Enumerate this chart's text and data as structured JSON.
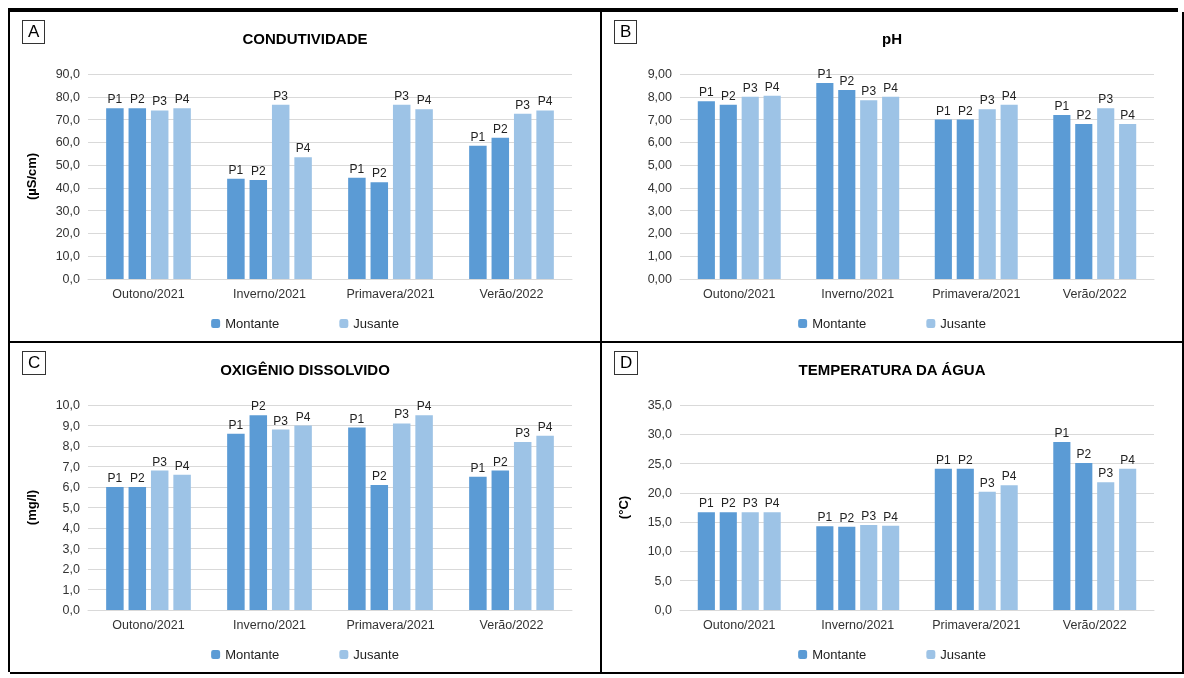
{
  "chart_data": [
    {
      "type": "bar",
      "title": "CONDUTIVIDADE",
      "ylabel": "(µS/cm)",
      "annotations": [
        "A"
      ],
      "categories": [
        "Outono/2021",
        "Inverno/2021",
        "Primavera/2021",
        "Verão/2022"
      ],
      "series": [
        {
          "name": "Montante",
          "color": "#5b9bd5",
          "values": [
            75,
            44,
            44.5,
            58.5
          ],
          "value_labels": [
            "P1",
            "P1",
            "P1",
            "P1"
          ]
        },
        {
          "color": "#5b9bd5",
          "values": [
            75,
            43.5,
            42.5,
            62
          ],
          "value_labels": [
            "P2",
            "P2",
            "P2",
            "P2"
          ]
        },
        {
          "name": "Jusante",
          "color": "#9dc3e6",
          "values": [
            74,
            76.5,
            76.5,
            72.5
          ],
          "value_labels": [
            "P3",
            "P3",
            "P3",
            "P3"
          ]
        },
        {
          "color": "#9dc3e6",
          "values": [
            75,
            53.5,
            74.5,
            74
          ],
          "value_labels": [
            "P4",
            "P4",
            "P4",
            "P4"
          ]
        }
      ],
      "ylim": [
        0,
        90
      ],
      "yticks": [
        {
          "value": 0,
          "label": "0,0"
        },
        {
          "value": 10,
          "label": "10,0"
        },
        {
          "value": 20,
          "label": "20,0"
        },
        {
          "value": 30,
          "label": "30,0"
        },
        {
          "value": 40,
          "label": "40,0"
        },
        {
          "value": 50,
          "label": "50,0"
        },
        {
          "value": 60,
          "label": "60,0"
        },
        {
          "value": 70,
          "label": "70,0"
        },
        {
          "value": 80,
          "label": "80,0"
        },
        {
          "value": 90,
          "label": "90,0"
        }
      ],
      "grid": "y",
      "legend": "bottom"
    },
    {
      "type": "bar",
      "title": "pH",
      "annotations": [
        "B"
      ],
      "categories": [
        "Outono/2021",
        "Inverno/2021",
        "Primavera/2021",
        "Verão/2022"
      ],
      "series": [
        {
          "name": "Montante",
          "color": "#5b9bd5",
          "values": [
            7.8,
            8.6,
            7.0,
            7.2
          ],
          "value_labels": [
            "P1",
            "P1",
            "P1",
            "P1"
          ]
        },
        {
          "color": "#5b9bd5",
          "values": [
            7.65,
            8.3,
            7.0,
            6.8
          ],
          "value_labels": [
            "P2",
            "P2",
            "P2",
            "P2"
          ]
        },
        {
          "name": "Jusante",
          "color": "#9dc3e6",
          "values": [
            8.0,
            7.85,
            7.45,
            7.5
          ],
          "value_labels": [
            "P3",
            "P3",
            "P3",
            "P3"
          ]
        },
        {
          "color": "#9dc3e6",
          "values": [
            8.05,
            8.0,
            7.65,
            6.8
          ],
          "value_labels": [
            "P4",
            "P4",
            "P4",
            "P4"
          ]
        }
      ],
      "ylim": [
        0,
        9
      ],
      "yticks": [
        {
          "value": 0,
          "label": "0,00"
        },
        {
          "value": 1,
          "label": "1,00"
        },
        {
          "value": 2,
          "label": "2,00"
        },
        {
          "value": 3,
          "label": "3,00"
        },
        {
          "value": 4,
          "label": "4,00"
        },
        {
          "value": 5,
          "label": "5,00"
        },
        {
          "value": 6,
          "label": "6,00"
        },
        {
          "value": 7,
          "label": "7,00"
        },
        {
          "value": 8,
          "label": "8,00"
        },
        {
          "value": 9,
          "label": "9,00"
        }
      ],
      "grid": "y",
      "legend": "bottom"
    },
    {
      "type": "bar",
      "title": "OXIGÊNIO DISSOLVIDO",
      "ylabel": "(mg/l)",
      "annotations": [
        "C"
      ],
      "categories": [
        "Outono/2021",
        "Inverno/2021",
        "Primavera/2021",
        "Verão/2022"
      ],
      "series": [
        {
          "name": "Montante",
          "color": "#5b9bd5",
          "values": [
            6.0,
            8.6,
            8.9,
            6.5
          ],
          "value_labels": [
            "P1",
            "P1",
            "P1",
            "P1"
          ]
        },
        {
          "color": "#5b9bd5",
          "values": [
            6.0,
            9.5,
            6.1,
            6.8
          ],
          "value_labels": [
            "P2",
            "P2",
            "P2",
            "P2"
          ]
        },
        {
          "name": "Jusante",
          "color": "#9dc3e6",
          "values": [
            6.8,
            8.8,
            9.1,
            8.2
          ],
          "value_labels": [
            "P3",
            "P3",
            "P3",
            "P3"
          ]
        },
        {
          "color": "#9dc3e6",
          "values": [
            6.6,
            9.0,
            9.5,
            8.5
          ],
          "value_labels": [
            "P4",
            "P4",
            "P4",
            "P4"
          ]
        }
      ],
      "ylim": [
        0,
        10
      ],
      "yticks": [
        {
          "value": 0,
          "label": "0,0"
        },
        {
          "value": 1,
          "label": "1,0"
        },
        {
          "value": 2,
          "label": "2,0"
        },
        {
          "value": 3,
          "label": "3,0"
        },
        {
          "value": 4,
          "label": "4,0"
        },
        {
          "value": 5,
          "label": "5,0"
        },
        {
          "value": 6,
          "label": "6,0"
        },
        {
          "value": 7,
          "label": "7,0"
        },
        {
          "value": 8,
          "label": "8,0"
        },
        {
          "value": 9,
          "label": "9,0"
        },
        {
          "value": 10,
          "label": "10,0"
        }
      ],
      "grid": "y",
      "legend": "bottom"
    },
    {
      "type": "bar",
      "title": "TEMPERATURA DA ÁGUA",
      "ylabel": "(°C)",
      "annotations": [
        "D"
      ],
      "categories": [
        "Outono/2021",
        "Inverno/2021",
        "Primavera/2021",
        "Verão/2022"
      ],
      "series": [
        {
          "name": "Montante",
          "color": "#5b9bd5",
          "values": [
            16.7,
            14.3,
            24.1,
            28.7
          ],
          "value_labels": [
            "P1",
            "P1",
            "P1",
            "P1"
          ]
        },
        {
          "color": "#5b9bd5",
          "values": [
            16.7,
            14.2,
            24.1,
            25.1
          ],
          "value_labels": [
            "P2",
            "P2",
            "P2",
            "P2"
          ]
        },
        {
          "name": "Jusante",
          "color": "#9dc3e6",
          "values": [
            16.7,
            14.5,
            20.2,
            21.8
          ],
          "value_labels": [
            "P3",
            "P3",
            "P3",
            "P3"
          ]
        },
        {
          "color": "#9dc3e6",
          "values": [
            16.7,
            14.4,
            21.3,
            24.1
          ],
          "value_labels": [
            "P4",
            "P4",
            "P4",
            "P4"
          ]
        }
      ],
      "ylim": [
        0,
        35
      ],
      "yticks": [
        {
          "value": 0,
          "label": "0,0"
        },
        {
          "value": 5,
          "label": "5,0"
        },
        {
          "value": 10,
          "label": "10,0"
        },
        {
          "value": 15,
          "label": "15,0"
        },
        {
          "value": 20,
          "label": "20,0"
        },
        {
          "value": 25,
          "label": "25,0"
        },
        {
          "value": 30,
          "label": "30,0"
        },
        {
          "value": 35,
          "label": "35,0"
        }
      ],
      "grid": "y",
      "legend": "bottom"
    }
  ]
}
